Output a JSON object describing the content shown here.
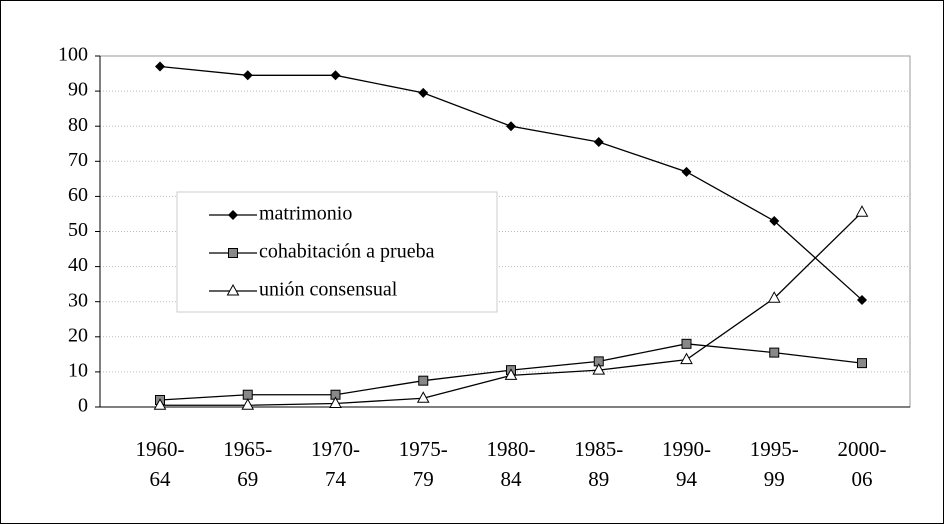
{
  "chart_data": {
    "type": "line",
    "categories": [
      "1960-\n64",
      "1965-\n69",
      "1970-\n74",
      "1975-\n79",
      "1980-\n84",
      "1985-\n89",
      "1990-\n94",
      "1995-\n99",
      "2000-\n06"
    ],
    "series": [
      {
        "name": "matrimonio",
        "color": "#000000",
        "marker": "diamond",
        "values": [
          97,
          94.5,
          94.5,
          89.5,
          80,
          75.5,
          67,
          53,
          30.5
        ]
      },
      {
        "name": "cohabitación a prueba",
        "color": "#000000",
        "marker": "square",
        "values": [
          2,
          3.5,
          3.5,
          7.5,
          10.5,
          13,
          18,
          15.5,
          12.5
        ]
      },
      {
        "name": "unión consensual",
        "color": "#000000",
        "marker": "triangle",
        "values": [
          0.5,
          0.5,
          1,
          2.5,
          9,
          10.5,
          13.5,
          31,
          55.5
        ]
      }
    ],
    "ylim": [
      0,
      100
    ],
    "yticks": [
      0,
      10,
      20,
      30,
      40,
      50,
      60,
      70,
      80,
      90,
      100
    ],
    "grid": true,
    "legend": "center-left"
  }
}
